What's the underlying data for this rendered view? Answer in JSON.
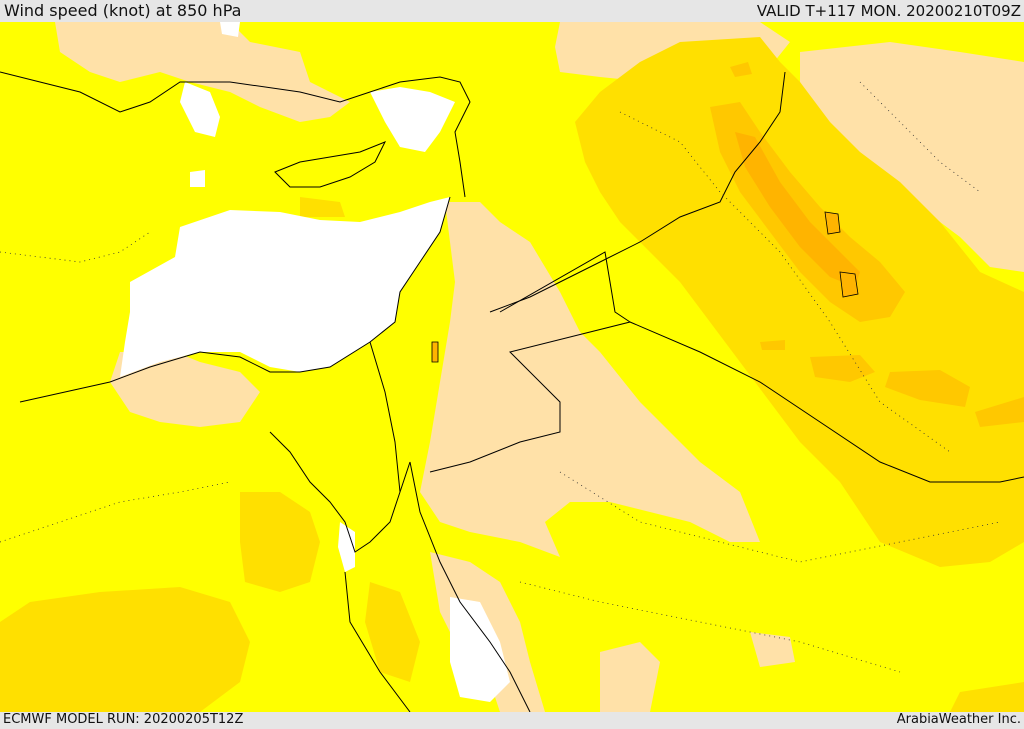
{
  "header": {
    "title": "Wind speed (knot) at 850 hPa",
    "valid": "VALID T+117 MON. 20200210T09Z"
  },
  "footer": {
    "model_run": "ECMWF MODEL RUN: 20200205T12Z",
    "credit": "ArabiaWeather Inc."
  },
  "colors": {
    "calm_white": "#ffffff",
    "light_tan": "#ffe1a8",
    "yellow": "#ffff00",
    "gold": "#ffe000",
    "orange_light": "#ffc800",
    "orange": "#ffb400",
    "border": "#000000"
  }
}
